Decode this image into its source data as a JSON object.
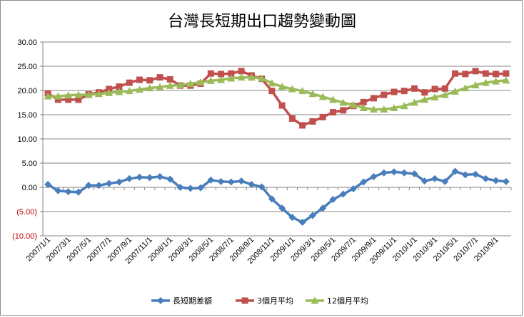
{
  "chart_data": {
    "type": "line",
    "title": "台灣長短期出口趨勢變動圖",
    "ylim": [
      -10,
      30
    ],
    "ytick_values": [
      -10,
      -5,
      0,
      5,
      10,
      15,
      20,
      25,
      30
    ],
    "ytick_labels": [
      "(10.00)",
      "(5.00)",
      "0.00",
      "5.00",
      "10.00",
      "15.00",
      "20.00",
      "25.00",
      "30.00"
    ],
    "categories": [
      "2007/1/1",
      "2007/2/1",
      "2007/3/1",
      "2007/4/1",
      "2007/5/1",
      "2007/6/1",
      "2007/7/1",
      "2007/8/1",
      "2007/9/1",
      "2007/10/1",
      "2007/11/1",
      "2007/12/1",
      "2008/1/1",
      "2008/2/1",
      "2008/3/1",
      "2008/4/1",
      "2008/5/1",
      "2008/6/1",
      "2008/7/1",
      "2008/8/1",
      "2008/9/1",
      "2008/10/1",
      "2008/11/1",
      "2008/12/1",
      "2009/1/1",
      "2009/2/1",
      "2009/3/1",
      "2009/4/1",
      "2009/5/1",
      "2009/6/1",
      "2009/7/1",
      "2009/8/1",
      "2009/9/1",
      "2009/10/1",
      "2009/11/1",
      "2009/12/1",
      "2010/1/1",
      "2010/2/1",
      "2010/3/1",
      "2010/4/1",
      "2010/5/1",
      "2010/6/1",
      "2010/7/1",
      "2010/8/1",
      "2010/9/1",
      "2010/10/1"
    ],
    "xtick_labels": [
      "2007/1/1",
      "2007/3/1",
      "2007/5/1",
      "2007/7/1",
      "2007/9/1",
      "2007/11/1",
      "2008/1/1",
      "2008/3/1",
      "2008/5/1",
      "2008/7/1",
      "2008/9/1",
      "2008/11/1",
      "2009/1/1",
      "2009/3/1",
      "2009/5/1",
      "2009/7/1",
      "2009/9/1",
      "2009/11/1",
      "2010/1/1",
      "2010/3/1",
      "2010/5/1",
      "2010/7/1",
      "2010/9/1"
    ],
    "series": [
      {
        "name": "長短期差額",
        "color": "#4a7ebb",
        "marker": "diamond",
        "values": [
          0.6,
          -0.7,
          -0.9,
          -1.0,
          0.4,
          0.4,
          0.8,
          1.1,
          1.8,
          2.1,
          2.0,
          2.2,
          1.7,
          0.0,
          -0.2,
          -0.1,
          1.5,
          1.2,
          1.1,
          1.3,
          0.6,
          0.1,
          -2.4,
          -4.3,
          -6.2,
          -7.2,
          -5.8,
          -4.3,
          -2.5,
          -1.4,
          -0.3,
          1.1,
          2.2,
          3.0,
          3.2,
          3.0,
          2.8,
          1.3,
          1.8,
          1.2,
          3.3,
          2.6,
          2.7,
          1.8,
          1.4,
          1.2
        ]
      },
      {
        "name": "3個月平均",
        "color": "#c0504d",
        "marker": "square",
        "values": [
          19.4,
          18.1,
          18.1,
          18.1,
          19.2,
          19.6,
          20.3,
          20.8,
          21.6,
          22.2,
          22.1,
          22.7,
          22.3,
          21.0,
          21.0,
          21.4,
          23.5,
          23.4,
          23.5,
          24.0,
          23.1,
          22.4,
          19.9,
          16.9,
          14.2,
          12.8,
          13.6,
          14.5,
          15.5,
          15.9,
          16.8,
          17.6,
          18.4,
          19.1,
          19.7,
          19.9,
          20.4,
          19.6,
          20.3,
          20.4,
          23.5,
          23.4,
          24.0,
          23.5,
          23.4,
          23.5
        ]
      },
      {
        "name": "12個月平均",
        "color": "#9bbb59",
        "marker": "triangle",
        "values": [
          18.8,
          18.8,
          19.0,
          19.1,
          19.1,
          19.3,
          19.5,
          19.7,
          19.9,
          20.2,
          20.5,
          20.7,
          21.0,
          21.1,
          21.4,
          21.7,
          22.0,
          22.2,
          22.5,
          22.7,
          22.7,
          22.5,
          21.5,
          20.8,
          20.3,
          19.9,
          19.3,
          18.7,
          18.1,
          17.5,
          17.0,
          16.4,
          16.1,
          16.1,
          16.4,
          16.8,
          17.5,
          18.1,
          18.6,
          19.1,
          19.8,
          20.5,
          21.1,
          21.6,
          21.9,
          22.1
        ]
      }
    ],
    "legend_position": "bottom"
  }
}
